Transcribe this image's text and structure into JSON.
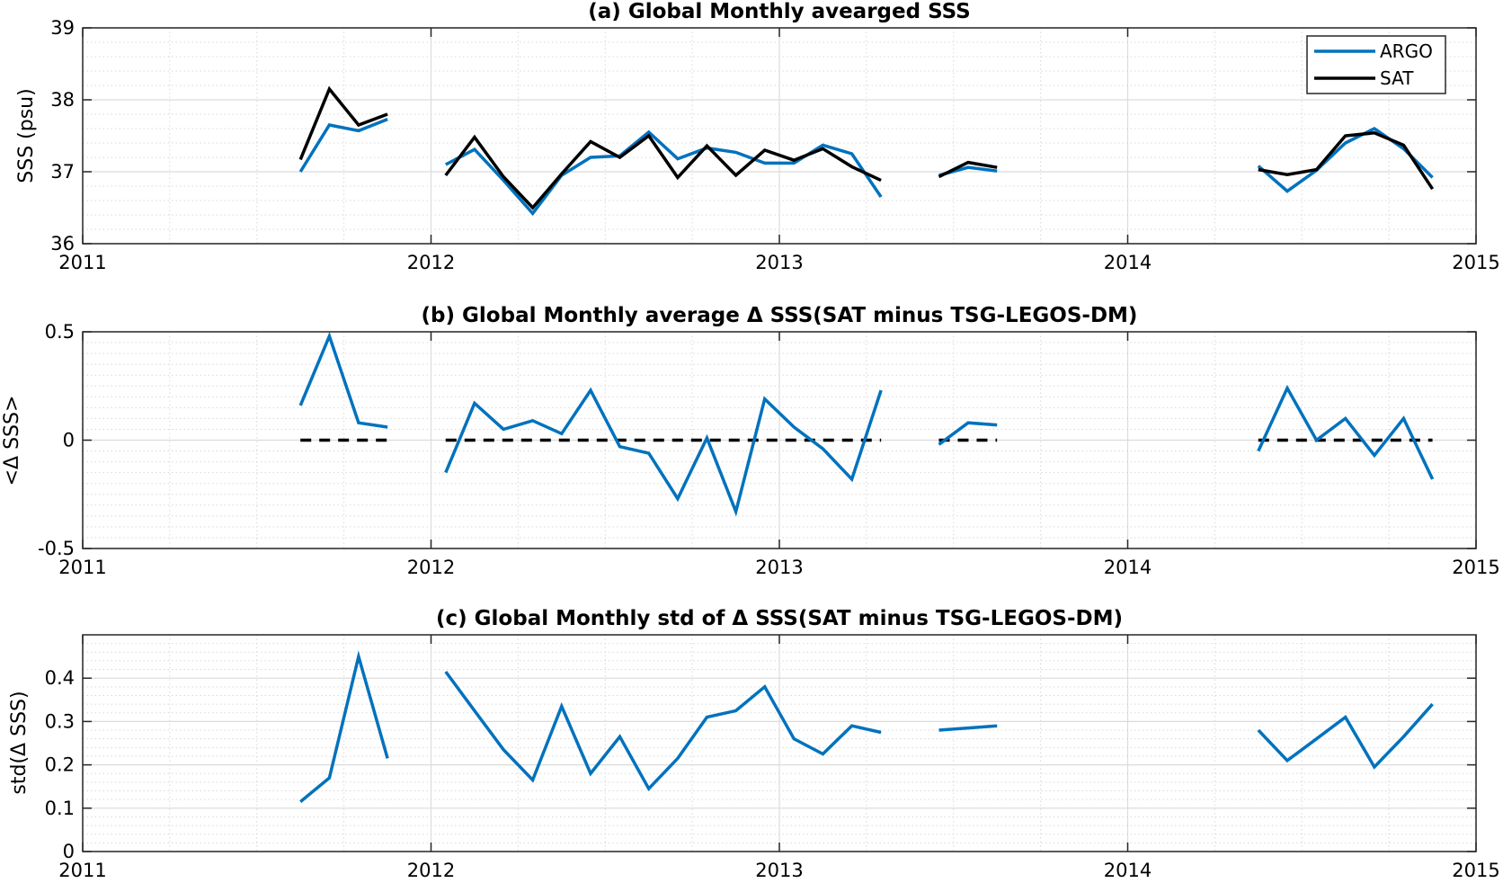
{
  "chart_data": [
    {
      "type": "line",
      "title": "(a) Global Monthly avearged SSS",
      "xlabel": "",
      "ylabel": "SSS (psu)",
      "xlim": [
        2011,
        2015
      ],
      "ylim": [
        36,
        39
      ],
      "xticks": [
        2011,
        2012,
        2013,
        2014,
        2015
      ],
      "xtick_labels": [
        "2011",
        "2012",
        "2013",
        "2014",
        "2015"
      ],
      "yticks": [
        36,
        37,
        38,
        39
      ],
      "ytick_labels": [
        "36",
        "37",
        "38",
        "39"
      ],
      "grid": true,
      "legend_position": "top-right",
      "colors": {
        "ARGO": "#0072BD",
        "SAT": "#000000"
      },
      "series": [
        {
          "name": "ARGO",
          "segments": [
            [
              [
                2011.625,
                37.0
              ],
              [
                2011.708,
                37.65
              ],
              [
                2011.792,
                37.57
              ],
              [
                2011.875,
                37.73
              ]
            ],
            [
              [
                2012.042,
                37.1
              ],
              [
                2012.125,
                37.31
              ],
              [
                2012.208,
                36.88
              ],
              [
                2012.292,
                36.42
              ],
              [
                2012.375,
                36.95
              ],
              [
                2012.458,
                37.2
              ],
              [
                2012.542,
                37.22
              ],
              [
                2012.625,
                37.55
              ],
              [
                2012.708,
                37.18
              ],
              [
                2012.792,
                37.33
              ],
              [
                2012.875,
                37.27
              ],
              [
                2012.958,
                37.12
              ],
              [
                2013.042,
                37.12
              ],
              [
                2013.125,
                37.37
              ],
              [
                2013.208,
                37.25
              ],
              [
                2013.292,
                36.65
              ]
            ],
            [
              [
                2013.458,
                36.95
              ],
              [
                2013.542,
                37.06
              ],
              [
                2013.625,
                37.01
              ]
            ],
            [
              [
                2014.375,
                37.08
              ],
              [
                2014.458,
                36.73
              ],
              [
                2014.542,
                37.02
              ],
              [
                2014.625,
                37.4
              ],
              [
                2014.708,
                37.6
              ],
              [
                2014.792,
                37.32
              ],
              [
                2014.875,
                36.92
              ]
            ]
          ]
        },
        {
          "name": "SAT",
          "segments": [
            [
              [
                2011.625,
                37.17
              ],
              [
                2011.708,
                38.15
              ],
              [
                2011.792,
                37.65
              ],
              [
                2011.875,
                37.8
              ]
            ],
            [
              [
                2012.042,
                36.95
              ],
              [
                2012.125,
                37.48
              ],
              [
                2012.208,
                36.93
              ],
              [
                2012.292,
                36.5
              ],
              [
                2012.375,
                36.97
              ],
              [
                2012.458,
                37.42
              ],
              [
                2012.542,
                37.2
              ],
              [
                2012.625,
                37.5
              ],
              [
                2012.708,
                36.92
              ],
              [
                2012.792,
                37.36
              ],
              [
                2012.875,
                36.95
              ],
              [
                2012.958,
                37.3
              ],
              [
                2013.042,
                37.16
              ],
              [
                2013.125,
                37.32
              ],
              [
                2013.208,
                37.07
              ],
              [
                2013.292,
                36.88
              ]
            ],
            [
              [
                2013.458,
                36.93
              ],
              [
                2013.542,
                37.13
              ],
              [
                2013.625,
                37.06
              ]
            ],
            [
              [
                2014.375,
                37.03
              ],
              [
                2014.458,
                36.96
              ],
              [
                2014.542,
                37.03
              ],
              [
                2014.625,
                37.5
              ],
              [
                2014.708,
                37.54
              ],
              [
                2014.792,
                37.37
              ],
              [
                2014.875,
                36.76
              ]
            ]
          ]
        }
      ]
    },
    {
      "type": "line",
      "title": "(b) Global Monthly average Δ SSS(SAT minus TSG-LEGOS-DM)",
      "xlabel": "",
      "ylabel": "<Δ SSS>",
      "xlim": [
        2011,
        2015
      ],
      "ylim": [
        -0.5,
        0.5
      ],
      "xticks": [
        2011,
        2012,
        2013,
        2014,
        2015
      ],
      "xtick_labels": [
        "2011",
        "2012",
        "2013",
        "2014",
        "2015"
      ],
      "yticks": [
        -0.5,
        0,
        0.5
      ],
      "ytick_labels": [
        "-0.5",
        "0",
        "0.5"
      ],
      "grid": true,
      "colors": {
        "delta": "#0072BD",
        "zero_line": "#000000"
      },
      "series": [
        {
          "segments": [
            [
              [
                2011.625,
                0.16
              ],
              [
                2011.708,
                0.48
              ],
              [
                2011.792,
                0.08
              ],
              [
                2011.875,
                0.06
              ]
            ],
            [
              [
                2012.042,
                -0.15
              ],
              [
                2012.125,
                0.17
              ],
              [
                2012.208,
                0.05
              ],
              [
                2012.292,
                0.09
              ],
              [
                2012.375,
                0.03
              ],
              [
                2012.458,
                0.23
              ],
              [
                2012.542,
                -0.03
              ],
              [
                2012.625,
                -0.06
              ],
              [
                2012.708,
                -0.27
              ],
              [
                2012.792,
                0.01
              ],
              [
                2012.875,
                -0.33
              ],
              [
                2012.958,
                0.19
              ],
              [
                2013.042,
                0.06
              ],
              [
                2013.125,
                -0.04
              ],
              [
                2013.208,
                -0.18
              ],
              [
                2013.292,
                0.23
              ]
            ],
            [
              [
                2013.458,
                -0.02
              ],
              [
                2013.542,
                0.08
              ],
              [
                2013.625,
                0.07
              ]
            ],
            [
              [
                2014.375,
                -0.05
              ],
              [
                2014.458,
                0.24
              ],
              [
                2014.542,
                0.0
              ],
              [
                2014.625,
                0.1
              ],
              [
                2014.708,
                -0.07
              ],
              [
                2014.792,
                0.1
              ],
              [
                2014.875,
                -0.18
              ]
            ]
          ]
        }
      ],
      "zero_segments": [
        [
          2011.625,
          2011.875
        ],
        [
          2012.042,
          2013.292
        ],
        [
          2013.458,
          2013.625
        ],
        [
          2014.375,
          2014.875
        ]
      ]
    },
    {
      "type": "line",
      "title": "(c) Global Monthly std of Δ SSS(SAT minus TSG-LEGOS-DM)",
      "xlabel": "",
      "ylabel": "std(Δ SSS)",
      "xlim": [
        2011,
        2015
      ],
      "ylim": [
        0,
        0.5
      ],
      "xticks": [
        2011,
        2012,
        2013,
        2014,
        2015
      ],
      "xtick_labels": [
        "2011",
        "2012",
        "2013",
        "2014",
        "2015"
      ],
      "yticks": [
        0,
        0.1,
        0.2,
        0.3,
        0.4
      ],
      "ytick_labels": [
        "0",
        "0.1",
        "0.2",
        "0.3",
        "0.4"
      ],
      "grid": true,
      "colors": {
        "std": "#0072BD"
      },
      "series": [
        {
          "segments": [
            [
              [
                2011.625,
                0.115
              ],
              [
                2011.708,
                0.17
              ],
              [
                2011.792,
                0.45
              ],
              [
                2011.875,
                0.215
              ]
            ],
            [
              [
                2012.042,
                0.415
              ],
              [
                2012.125,
                0.325
              ],
              [
                2012.208,
                0.235
              ],
              [
                2012.292,
                0.165
              ],
              [
                2012.375,
                0.335
              ],
              [
                2012.458,
                0.18
              ],
              [
                2012.542,
                0.265
              ],
              [
                2012.625,
                0.145
              ],
              [
                2012.708,
                0.215
              ],
              [
                2012.792,
                0.31
              ],
              [
                2012.875,
                0.325
              ],
              [
                2012.958,
                0.38
              ],
              [
                2013.042,
                0.26
              ],
              [
                2013.125,
                0.225
              ],
              [
                2013.208,
                0.29
              ],
              [
                2013.292,
                0.275
              ]
            ],
            [
              [
                2013.458,
                0.28
              ],
              [
                2013.542,
                0.285
              ],
              [
                2013.625,
                0.29
              ]
            ],
            [
              [
                2014.375,
                0.28
              ],
              [
                2014.458,
                0.21
              ],
              [
                2014.542,
                0.26
              ],
              [
                2014.625,
                0.31
              ],
              [
                2014.708,
                0.195
              ],
              [
                2014.792,
                0.265
              ],
              [
                2014.875,
                0.34
              ]
            ]
          ]
        }
      ]
    }
  ]
}
